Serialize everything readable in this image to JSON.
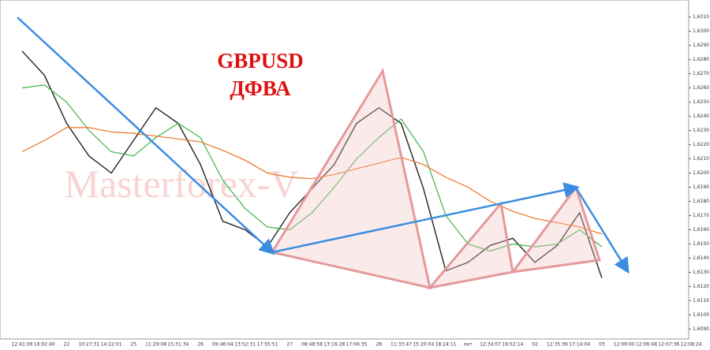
{
  "chart_data": {
    "type": "line",
    "annotations": [
      "GBPUSD",
      "ДФВА",
      "Masterforex-V"
    ],
    "categories": [
      "12:41:09",
      "16:02:40",
      "22",
      "10:27:31",
      "14:22:01",
      "25",
      "11:29:08",
      "15:31:34",
      "26",
      "09:46:04",
      "13:52:31",
      "17:55:51",
      "27",
      "08:48:58",
      "13:16:28",
      "17:06:35",
      "28",
      "11:33:47",
      "15:20:04",
      "18:24:11",
      "окт",
      "12:34:07",
      "16:52:14",
      "02",
      "12:35:36",
      "17:14:04",
      "03",
      "12:06:00",
      "12:06:48",
      "12:07:36",
      "12:08:24"
    ],
    "series": [
      {
        "color": "#222222",
        "values": [
          1.6286,
          1.6269,
          1.6235,
          1.6212,
          1.62,
          1.6223,
          1.6246,
          1.6235,
          1.6206,
          1.6166,
          1.616,
          1.6148,
          1.6172,
          1.6189,
          1.6206,
          1.6235,
          1.6246,
          1.6235,
          1.6189,
          1.6131,
          1.6137,
          1.6149,
          1.6154,
          1.6137,
          1.6149,
          1.6172,
          1.6126,
          null,
          null,
          null,
          null
        ]
      },
      {
        "color": "#3cb44b",
        "values": [
          1.626,
          1.6262,
          1.625,
          1.623,
          1.6215,
          1.6212,
          1.6225,
          1.6235,
          1.6225,
          1.6195,
          1.6175,
          1.6162,
          1.616,
          1.6172,
          1.619,
          1.621,
          1.6225,
          1.6238,
          1.6215,
          1.617,
          1.615,
          1.6145,
          1.615,
          1.6148,
          1.615,
          1.616,
          1.6148,
          null,
          null,
          null,
          null
        ]
      },
      {
        "color": "#f07020",
        "values": [
          1.6215,
          1.6223,
          1.6232,
          1.6232,
          1.6229,
          1.6228,
          1.6226,
          1.6224,
          1.6222,
          1.6216,
          1.6209,
          1.62,
          1.6197,
          1.6196,
          1.6199,
          1.6203,
          1.6207,
          1.6211,
          1.6206,
          1.6197,
          1.619,
          1.618,
          1.6173,
          1.6168,
          1.6165,
          1.6162,
          1.6157,
          null,
          null,
          null,
          null
        ]
      }
    ],
    "ylim": [
      1.6083,
      1.6322
    ],
    "yticks": [
      {
        "value": 1.609,
        "label": "1,6090"
      },
      {
        "value": 1.61,
        "label": "1,6100"
      },
      {
        "value": 1.611,
        "label": "1,6110"
      },
      {
        "value": 1.612,
        "label": "1,6120"
      },
      {
        "value": 1.613,
        "label": "1,6130"
      },
      {
        "value": 1.614,
        "label": "1,6140"
      },
      {
        "value": 1.615,
        "label": "1,6150"
      },
      {
        "value": 1.616,
        "label": "1,6160"
      },
      {
        "value": 1.617,
        "label": "1,6170"
      },
      {
        "value": 1.618,
        "label": "1,6180"
      },
      {
        "value": 1.619,
        "label": "1,6190"
      },
      {
        "value": 1.62,
        "label": "1,6200"
      },
      {
        "value": 1.621,
        "label": "1,6210"
      },
      {
        "value": 1.622,
        "label": "1,6220"
      },
      {
        "value": 1.623,
        "label": "1,6230"
      },
      {
        "value": 1.624,
        "label": "1,6240"
      },
      {
        "value": 1.625,
        "label": "1,6250"
      },
      {
        "value": 1.626,
        "label": "1,6260"
      },
      {
        "value": 1.627,
        "label": "1,6270"
      },
      {
        "value": 1.628,
        "label": "1,6280"
      },
      {
        "value": 1.629,
        "label": "1,6290"
      },
      {
        "value": 1.63,
        "label": "1,6300"
      },
      {
        "value": 1.631,
        "label": "1,6310"
      }
    ]
  }
}
